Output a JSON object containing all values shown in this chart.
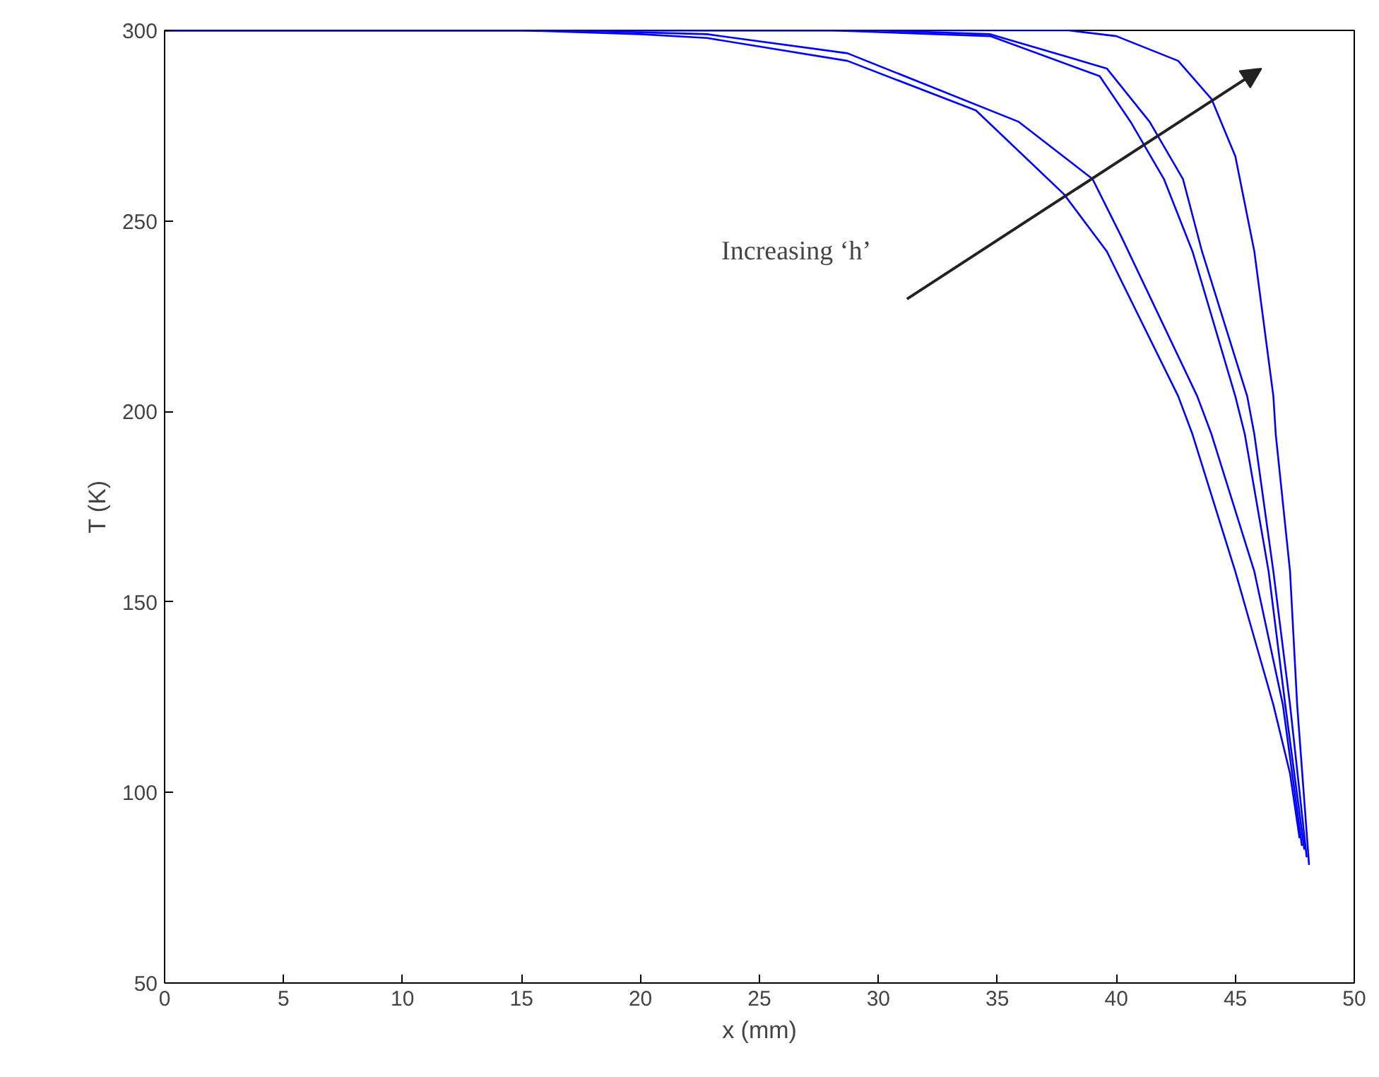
{
  "chart_data": {
    "type": "line",
    "xlabel": "x (mm)",
    "ylabel": "T (K)",
    "xlim": [
      0,
      50
    ],
    "ylim": [
      50,
      300
    ],
    "xticks": [
      0,
      5,
      10,
      15,
      20,
      25,
      30,
      35,
      40,
      45,
      50
    ],
    "yticks": [
      50,
      100,
      150,
      200,
      250,
      300
    ],
    "grid": false,
    "marker": "none",
    "line_style": "solid",
    "annotations": [
      "Increasing ‘h’"
    ],
    "series": [
      {
        "color": "#0000ff",
        "x": [
          0,
          15,
          20,
          22.8,
          28.7,
          34.1,
          37.8,
          39.6,
          42.6,
          43.2,
          45.0,
          46.6,
          47.3,
          47.7
        ],
        "values": [
          300,
          300,
          299,
          298,
          292,
          279,
          257,
          242,
          204,
          194,
          158,
          123,
          105,
          88
        ]
      },
      {
        "color": "#0000ff",
        "x": [
          0,
          17,
          22.8,
          28.7,
          35.9,
          39.0,
          40.2,
          43.4,
          44.0,
          45.8,
          47.0,
          47.8
        ],
        "values": [
          300,
          300,
          299,
          294,
          276,
          261,
          246,
          204,
          194,
          158,
          123,
          86
        ]
      },
      {
        "color": "#0000ff",
        "x": [
          0,
          28,
          34.7,
          39.3,
          40.6,
          42.0,
          43.2,
          45.0,
          45.4,
          46.4,
          47.1,
          47.9
        ],
        "values": [
          300,
          300,
          298.5,
          288,
          276,
          261,
          242,
          204,
          194,
          158,
          123,
          85
        ]
      },
      {
        "color": "#0000ff",
        "x": [
          0,
          30,
          34.7,
          39.6,
          41.4,
          42.8,
          43.6,
          45.5,
          45.8,
          46.6,
          47.3,
          48
        ],
        "values": [
          300,
          300,
          299,
          290,
          276,
          261,
          242,
          204,
          194,
          158,
          123,
          83
        ]
      },
      {
        "color": "#0000ff",
        "x": [
          0,
          38,
          40.0,
          42.6,
          44.0,
          45.0,
          45.8,
          46.6,
          46.7,
          47.3,
          47.6,
          48.1
        ],
        "values": [
          300,
          300,
          298.5,
          292,
          282,
          267,
          242,
          204,
          194,
          158,
          123,
          81
        ]
      }
    ]
  }
}
